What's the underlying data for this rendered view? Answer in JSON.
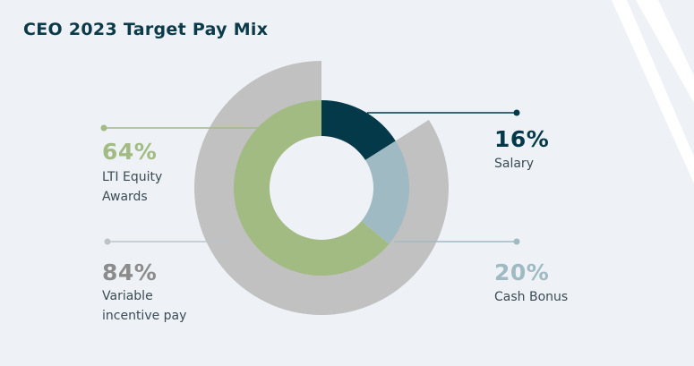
{
  "title": "CEO 2023 Target Pay Mix",
  "chart_data": {
    "type": "pie",
    "variant": "nested-donut",
    "title": "CEO 2023 Target Pay Mix",
    "inner_ring": [
      {
        "name": "Salary",
        "value": 16,
        "label": "16%",
        "color": "#04394a"
      },
      {
        "name": "Cash Bonus",
        "value": 20,
        "label": "20%",
        "color": "#9fbac3"
      },
      {
        "name": "LTI Equity Awards",
        "value": 64,
        "label": "64%",
        "color": "#a1bb83",
        "label_lines": [
          "LTI Equity",
          "Awards"
        ]
      }
    ],
    "outer_ring": [
      {
        "name": "Variable incentive pay",
        "value": 84,
        "label": "84%",
        "color": "#c1c1c1",
        "label_lines": [
          "Variable",
          "incentive pay"
        ]
      }
    ]
  }
}
